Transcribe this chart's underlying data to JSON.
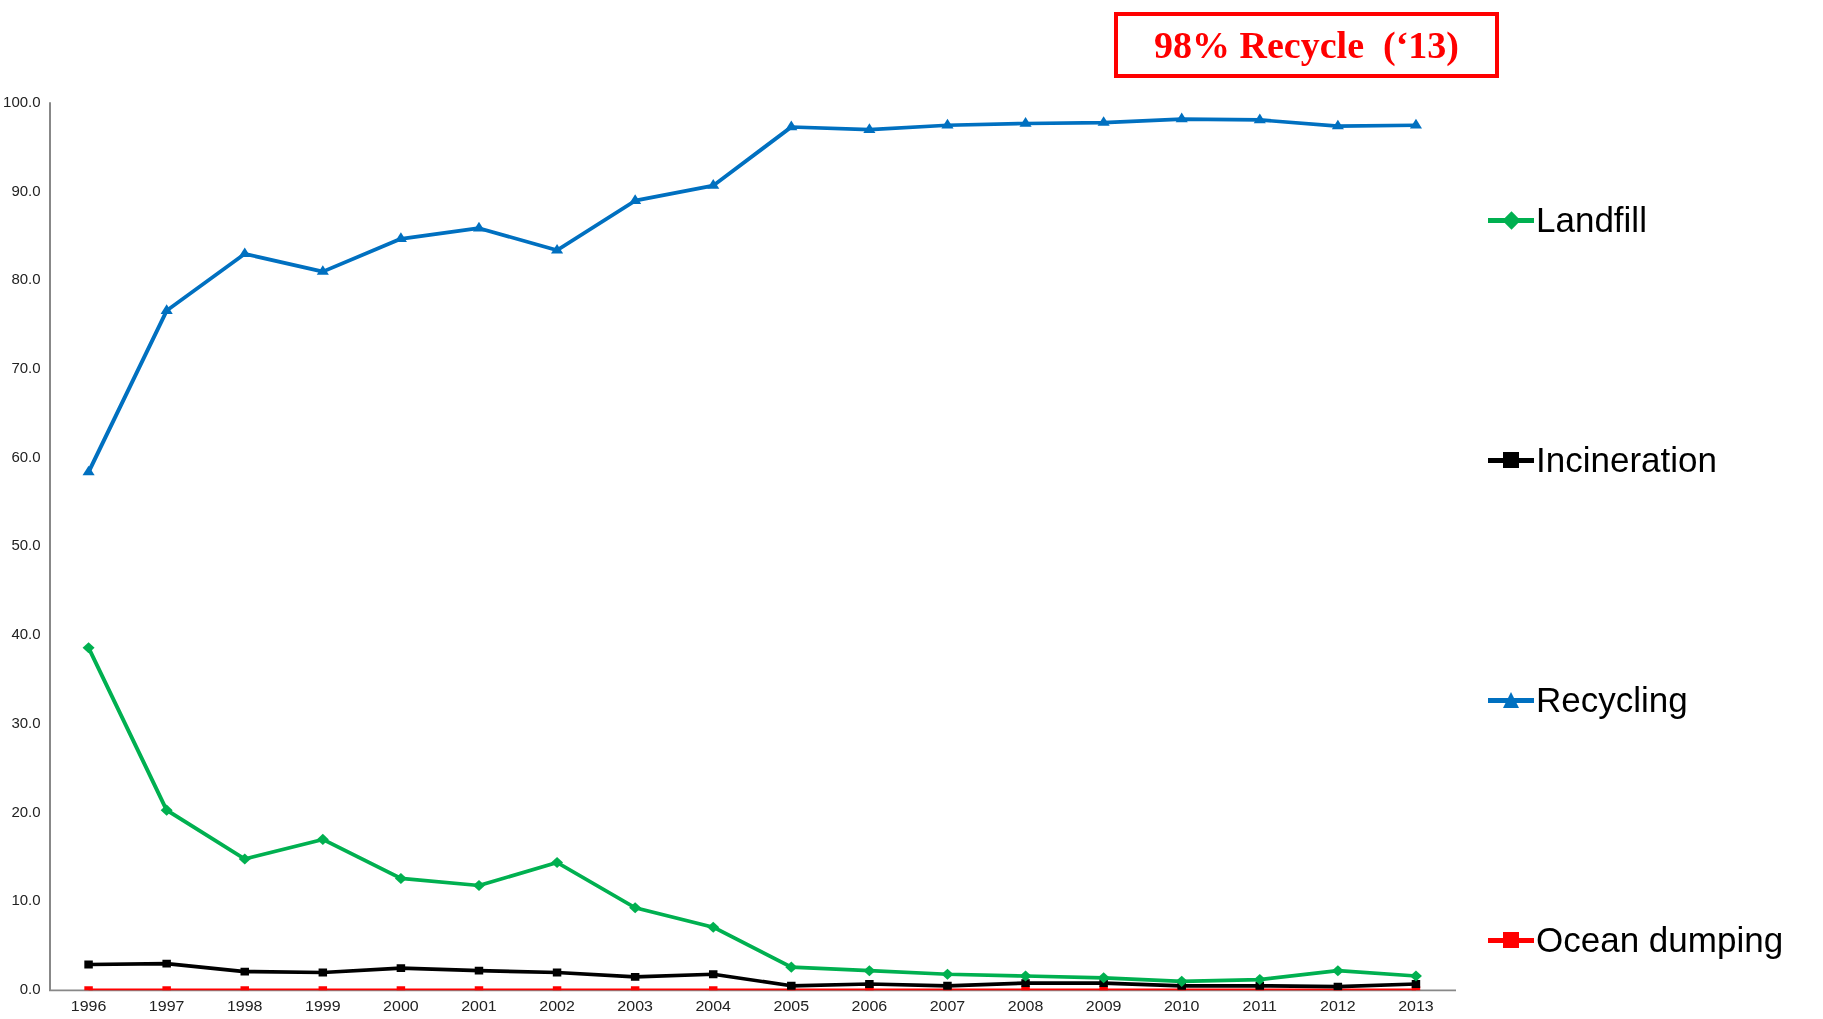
{
  "chart_data": {
    "type": "line",
    "annotations": [
      "98% Recycle  (‘13)"
    ],
    "categories": [
      "1996",
      "1997",
      "1998",
      "1999",
      "2000",
      "2001",
      "2002",
      "2003",
      "2004",
      "2005",
      "2006",
      "2007",
      "2008",
      "2009",
      "2010",
      "2011",
      "2012",
      "2013"
    ],
    "series": [
      {
        "name": "Landfill",
        "color": "#00b050",
        "marker": "diamond",
        "values": [
          38.6,
          20.3,
          14.8,
          17.0,
          12.6,
          11.8,
          14.4,
          9.3,
          7.1,
          2.6,
          2.2,
          1.8,
          1.6,
          1.4,
          1.0,
          1.2,
          2.2,
          1.6
        ]
      },
      {
        "name": "Incineration",
        "color": "#000000",
        "marker": "square",
        "values": [
          2.9,
          3.0,
          2.1,
          2.0,
          2.5,
          2.2,
          2.0,
          1.5,
          1.8,
          0.5,
          0.7,
          0.5,
          0.8,
          0.8,
          0.5,
          0.5,
          0.4,
          0.7
        ]
      },
      {
        "name": "Recycling",
        "color": "#0070c0",
        "marker": "triangle",
        "values": [
          58.4,
          76.6,
          83.0,
          81.0,
          84.7,
          85.9,
          83.4,
          89.0,
          90.7,
          97.3,
          97.0,
          97.5,
          97.7,
          97.8,
          98.2,
          98.1,
          97.4,
          97.5
        ]
      },
      {
        "name": "Ocean dumping",
        "color": "#ff0000",
        "marker": "square",
        "values": [
          0,
          0,
          0,
          0,
          0,
          0,
          0,
          0,
          0,
          0,
          0,
          0,
          0,
          0,
          0,
          0,
          0,
          0
        ]
      }
    ],
    "ylim": [
      0,
      100
    ],
    "yticks": [
      {
        "value": 0,
        "label": "0.0"
      },
      {
        "value": 10,
        "label": "10.0"
      },
      {
        "value": 20,
        "label": "20.0"
      },
      {
        "value": 30,
        "label": "30.0"
      },
      {
        "value": 40,
        "label": "40.0"
      },
      {
        "value": 50,
        "label": "50.0"
      },
      {
        "value": 60,
        "label": "60.0"
      },
      {
        "value": 70,
        "label": "70.0"
      },
      {
        "value": 80,
        "label": "80.0"
      },
      {
        "value": 90,
        "label": "90.0"
      },
      {
        "value": 100,
        "label": "100.0"
      }
    ],
    "grid": false,
    "legend": "right"
  }
}
